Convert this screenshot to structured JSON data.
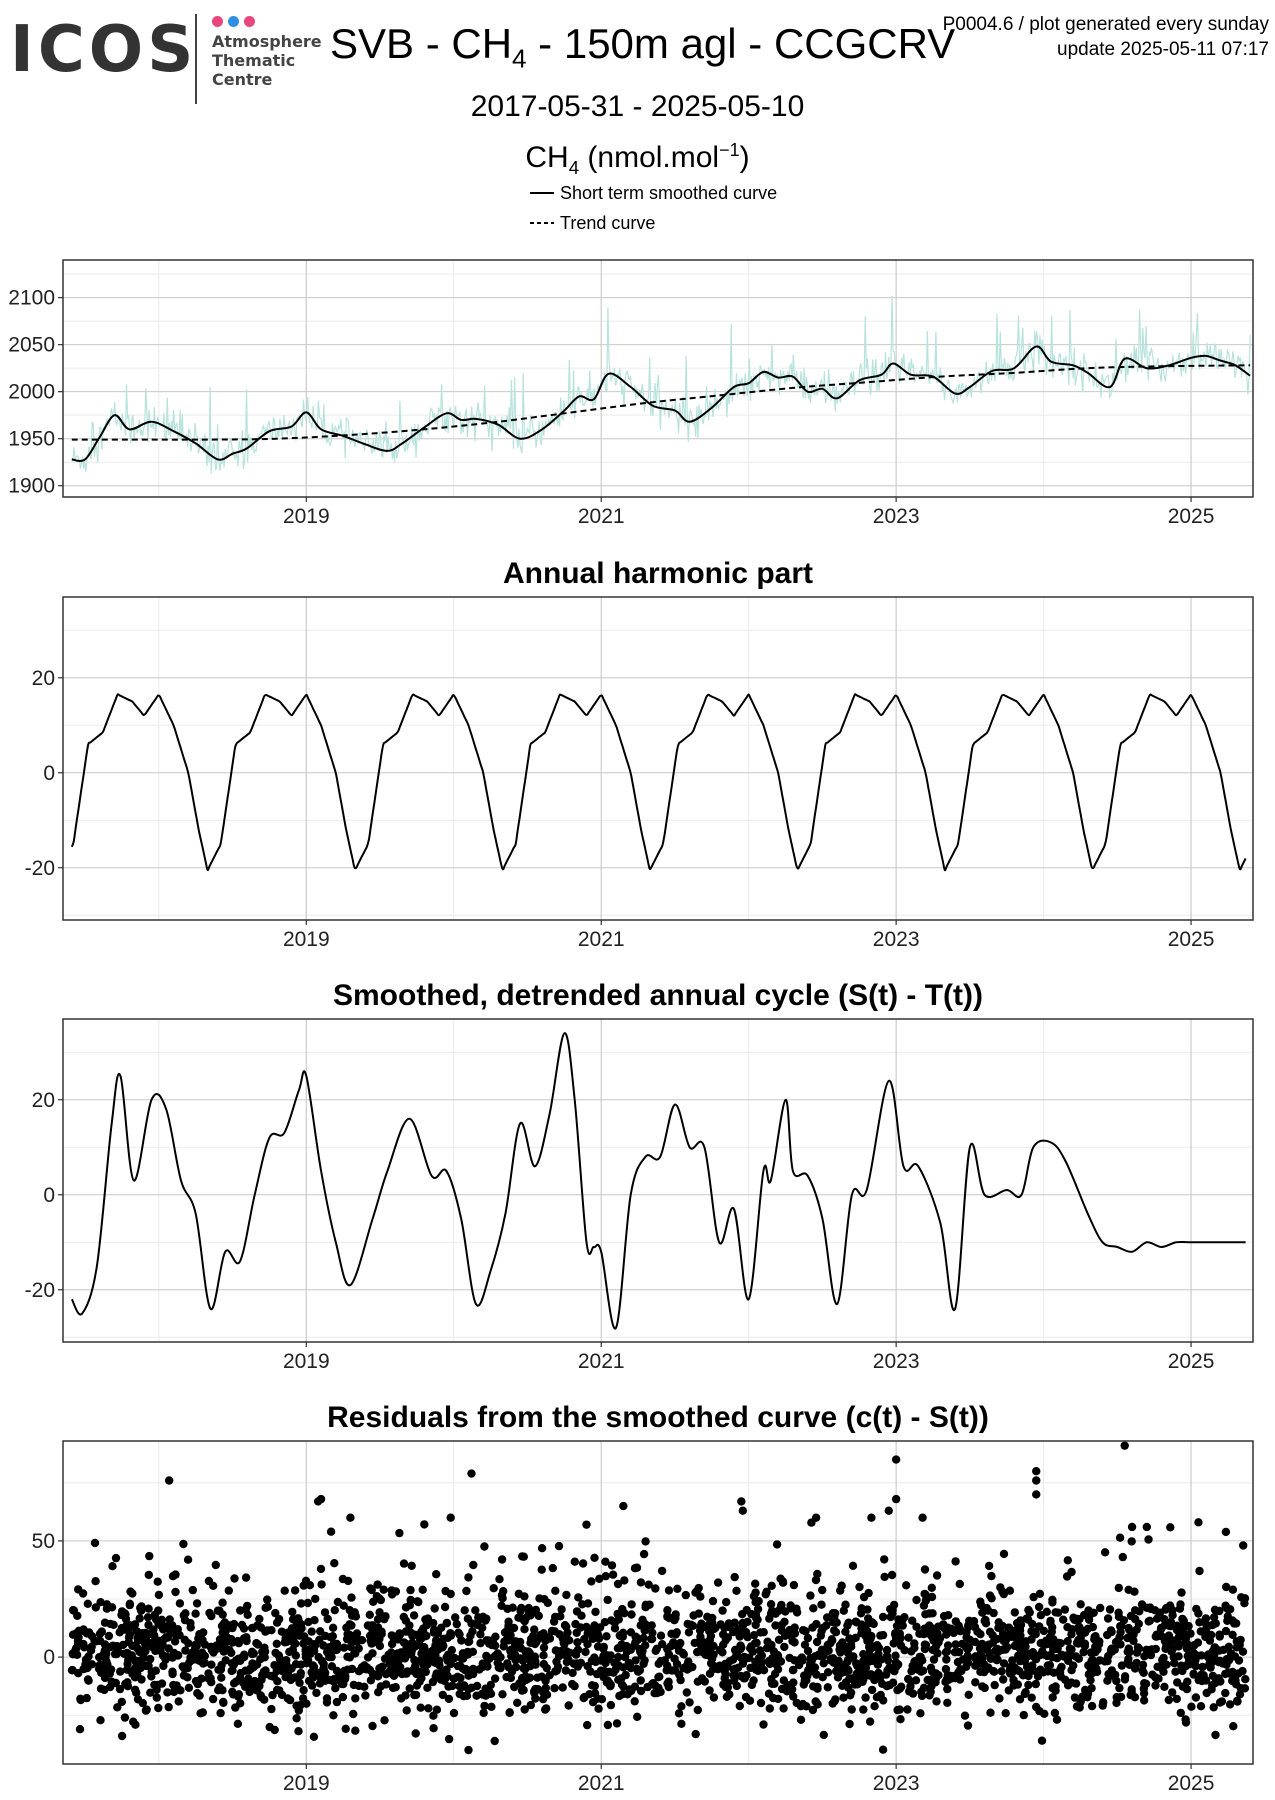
{
  "header": {
    "logo_wordmark": "ICOS",
    "logo_line1": "Atmosphere",
    "logo_line2": "Thematic",
    "logo_line3": "Centre",
    "logo_dot_colors": [
      "#e8467c",
      "#2f8fe0",
      "#e8467c"
    ],
    "title_prefix": "SVB - CH",
    "title_sub": "4",
    "title_suffix": " - 150m agl - CCGCRV",
    "meta_line1": "P0004.6 / plot generated every sunday",
    "meta_line2": "update  2025-05-11 07:17",
    "date_range": "2017-05-31 - 2025-05-10",
    "unit_prefix": "CH",
    "unit_sub": "4",
    "unit_mid": " (nmol.mol",
    "unit_sup": "−1",
    "unit_end": ")",
    "legend_smooth": "Short term smoothed curve",
    "legend_trend": "Trend curve"
  },
  "colors": {
    "raw": "#b8e3dc",
    "line": "#000000",
    "grid_major": "#cccccc",
    "grid_minor": "#ebebeb",
    "frame": "#333333"
  },
  "chart_data": [
    {
      "type": "line",
      "title": "",
      "xlabel": "",
      "ylabel": "",
      "xlim": [
        2017.35,
        2025.42
      ],
      "ylim": [
        1888,
        2140
      ],
      "yticks": [
        1900,
        1950,
        2000,
        2050,
        2100
      ],
      "xticks": [
        2019,
        2021,
        2023,
        2025
      ],
      "series": [
        {
          "name": "Short term smoothed curve",
          "style": "solid",
          "x": [
            2017.41,
            2017.5,
            2017.6,
            2017.7,
            2017.8,
            2017.95,
            2018.1,
            2018.25,
            2018.4,
            2018.5,
            2018.6,
            2018.75,
            2018.9,
            2019.0,
            2019.1,
            2019.25,
            2019.4,
            2019.55,
            2019.65,
            2019.8,
            2019.95,
            2020.05,
            2020.15,
            2020.3,
            2020.45,
            2020.6,
            2020.75,
            2020.85,
            2020.95,
            2021.05,
            2021.2,
            2021.35,
            2021.5,
            2021.6,
            2021.75,
            2021.9,
            2022.0,
            2022.1,
            2022.2,
            2022.3,
            2022.4,
            2022.5,
            2022.6,
            2022.75,
            2022.9,
            2022.98,
            2023.1,
            2023.25,
            2023.4,
            2023.5,
            2023.65,
            2023.8,
            2023.95,
            2024.05,
            2024.2,
            2024.3,
            2024.45,
            2024.55,
            2024.7,
            2024.85,
            2025.0,
            2025.1,
            2025.2,
            2025.3,
            2025.4
          ],
          "y": [
            1928,
            1928,
            1952,
            1975,
            1960,
            1968,
            1958,
            1945,
            1928,
            1934,
            1940,
            1958,
            1963,
            1978,
            1960,
            1953,
            1944,
            1937,
            1945,
            1962,
            1977,
            1970,
            1971,
            1965,
            1950,
            1960,
            1980,
            1995,
            1992,
            2019,
            2005,
            1985,
            1980,
            1968,
            1983,
            2005,
            2009,
            2021,
            2015,
            2016,
            2000,
            2003,
            1993,
            2012,
            2018,
            2030,
            2018,
            2016,
            1998,
            2005,
            2022,
            2025,
            2048,
            2032,
            2028,
            2020,
            2005,
            2035,
            2025,
            2028,
            2036,
            2038,
            2033,
            2028,
            2017
          ]
        },
        {
          "name": "Trend curve",
          "style": "dashed",
          "x": [
            2017.41,
            2017.8,
            2018.3,
            2018.8,
            2019.3,
            2019.8,
            2020.3,
            2020.8,
            2021.3,
            2021.8,
            2022.3,
            2022.8,
            2023.3,
            2023.8,
            2024.3,
            2024.8,
            2025.4
          ],
          "y": [
            1949,
            1949,
            1949,
            1950,
            1954,
            1960,
            1968,
            1978,
            1988,
            1996,
            2004,
            2010,
            2016,
            2020,
            2025,
            2027,
            2028
          ]
        }
      ]
    },
    {
      "type": "line",
      "title": "Annual harmonic part",
      "xlabel": "",
      "ylabel": "",
      "xlim": [
        2017.35,
        2025.42
      ],
      "ylim": [
        -31,
        37
      ],
      "yticks": [
        -20,
        0,
        20
      ],
      "xticks": [
        2019,
        2021,
        2023,
        2025
      ],
      "series": [
        {
          "name": "",
          "style": "solid",
          "phase_x": [
            0,
            0.1,
            0.2,
            0.27,
            0.33,
            0.42,
            0.52,
            0.62,
            0.72,
            0.82,
            0.9,
            1.0
          ],
          "phase_y": [
            16.5,
            10,
            0,
            -12,
            -20.5,
            -15,
            6,
            8.5,
            16.5,
            15,
            12,
            16.5
          ],
          "x_start": 2017.41,
          "x_end": 2025.37
        }
      ]
    },
    {
      "type": "line",
      "title": "Smoothed, detrended annual cycle (S(t) - T(t))",
      "xlabel": "",
      "ylabel": "",
      "xlim": [
        2017.35,
        2025.42
      ],
      "ylim": [
        -31,
        37
      ],
      "yticks": [
        -20,
        0,
        20
      ],
      "xticks": [
        2019,
        2021,
        2023,
        2025
      ],
      "series": [
        {
          "name": "",
          "style": "solid",
          "x": [
            2017.41,
            2017.48,
            2017.58,
            2017.68,
            2017.74,
            2017.83,
            2017.95,
            2018.05,
            2018.15,
            2018.25,
            2018.35,
            2018.45,
            2018.55,
            2018.65,
            2018.75,
            2018.85,
            2018.95,
            2019.0,
            2019.1,
            2019.2,
            2019.3,
            2019.45,
            2019.55,
            2019.7,
            2019.85,
            2019.95,
            2020.05,
            2020.15,
            2020.25,
            2020.35,
            2020.45,
            2020.55,
            2020.65,
            2020.75,
            2020.82,
            2020.9,
            2020.95,
            2021.0,
            2021.1,
            2021.2,
            2021.3,
            2021.4,
            2021.5,
            2021.6,
            2021.7,
            2021.8,
            2021.9,
            2022.0,
            2022.1,
            2022.15,
            2022.25,
            2022.3,
            2022.4,
            2022.5,
            2022.6,
            2022.7,
            2022.8,
            2022.95,
            2023.05,
            2023.15,
            2023.3,
            2023.4,
            2023.5,
            2023.6,
            2023.75,
            2023.85,
            2023.93,
            2024.05,
            2024.15,
            2024.3,
            2024.4,
            2024.5,
            2024.6,
            2024.7,
            2024.8,
            2024.9,
            2025.0,
            2025.1,
            2025.2,
            2025.3,
            2025.37
          ],
          "y": [
            -22,
            -25,
            -15,
            15,
            25,
            3,
            20,
            18,
            3,
            -4,
            -24,
            -12,
            -14,
            0,
            12,
            13,
            22,
            25,
            5,
            -10,
            -19,
            -5,
            5,
            16,
            4,
            5,
            -5,
            -23,
            -16,
            -4,
            15,
            6,
            17,
            34,
            20,
            -10,
            -11,
            -12,
            -28,
            0,
            8,
            8,
            19,
            10,
            10,
            -10,
            -3,
            -22,
            5,
            3,
            20,
            5,
            4,
            -5,
            -23,
            0,
            1,
            24,
            6,
            6,
            -6,
            -24,
            10,
            0,
            1,
            0,
            10,
            11,
            7,
            -4,
            -10,
            -11,
            -12,
            -10,
            -11,
            -10,
            -10,
            -10,
            -10,
            -10,
            -10
          ]
        }
      ]
    },
    {
      "type": "scatter",
      "title": "Residuals from the smoothed curve (c(t) - S(t))",
      "xlabel": "",
      "ylabel": "",
      "xlim": [
        2017.35,
        2025.42
      ],
      "ylim": [
        -46,
        93
      ],
      "yticks": [
        0,
        50
      ],
      "xticks": [
        2019,
        2021,
        2023,
        2025
      ],
      "series": [
        {
          "name": "",
          "n_points": 2600,
          "x_start": 2017.41,
          "x_end": 2025.37,
          "spread": 12,
          "outliers": [
            [
              2018.07,
              76
            ],
            [
              2019.08,
              67
            ],
            [
              2019.1,
              68
            ],
            [
              2020.12,
              79
            ],
            [
              2020.9,
              57
            ],
            [
              2021.15,
              65
            ],
            [
              2021.95,
              67
            ],
            [
              2021.96,
              63
            ],
            [
              2022.95,
              63
            ],
            [
              2023.0,
              85
            ],
            [
              2023.0,
              68
            ],
            [
              2023.95,
              80
            ],
            [
              2023.95,
              76
            ],
            [
              2023.95,
              70
            ],
            [
              2024.55,
              91
            ],
            [
              2024.6,
              56
            ],
            [
              2024.7,
              56
            ],
            [
              2025.05,
              58
            ]
          ]
        }
      ]
    }
  ]
}
